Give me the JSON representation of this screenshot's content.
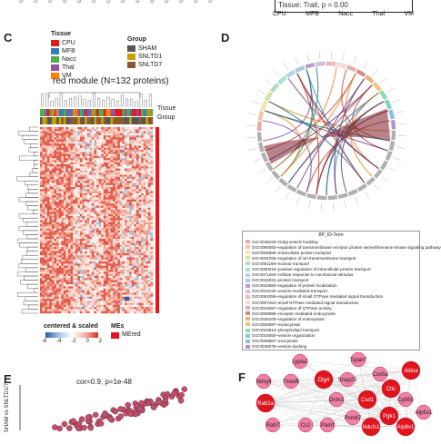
{
  "top_strip": {
    "tick_labels": [
      "SNLTD7",
      "SNLTD1",
      "SNLTD7",
      "SNLTD1",
      "Sham",
      "SNLTD7",
      "SNLTD1",
      "SNLTD7",
      "SNLTD1",
      "Sham",
      "SNLTD7",
      "SNLTD1",
      "SNLTD7",
      "SNLTD1"
    ],
    "stat_text": "Tissue: Trait, p = 0.00",
    "tissue_labels": [
      "CPU",
      "MFB",
      "Nacc",
      "Thal",
      "VM"
    ]
  },
  "panel_c": {
    "letter": "C",
    "tissue_legend_title": "Tissue",
    "tissue_items": [
      {
        "label": "CPU",
        "color": "#e41a1c"
      },
      {
        "label": "MFB",
        "color": "#377eb8"
      },
      {
        "label": "Nacc",
        "color": "#4daf4a"
      },
      {
        "label": "Thal",
        "color": "#984ea3"
      },
      {
        "label": "VM",
        "color": "#ff7f00"
      }
    ],
    "group_legend_title": "Group",
    "group_items": [
      {
        "label": "SHAM",
        "color": "#555555"
      },
      {
        "label": "SNLTD1",
        "color": "#c8a000"
      },
      {
        "label": "SNLTD7",
        "color": "#8b5a2b"
      }
    ],
    "heatmap_title": "red module (N=132 proteins)",
    "row_label_tissue": "Tissue",
    "row_label_group": "Group",
    "scale_title": "centered & scaled",
    "scale_ticks": [
      "-6",
      "-4",
      "-2",
      "0",
      "2"
    ],
    "mes_title": "MEs",
    "mes_label": "MEred",
    "mes_color": "#e8141c"
  },
  "panel_d": {
    "letter": "D",
    "legend_header": "BP_ID-Term",
    "terms": [
      {
        "label": "GO:0048193~Golgi vesicle budding",
        "color": "#f4a3a8"
      },
      {
        "label": "GO:0090092~regulation of transmembrane receptor protein serine/threonine kinase signaling pathway",
        "color": "#f7c8a0"
      },
      {
        "label": "GO:0006886~intracellular protein transport",
        "color": "#f9e79f"
      },
      {
        "label": "GO:0034765~regulation of ion transmembrane transport",
        "color": "#d5e8a0"
      },
      {
        "label": "GO:0051169~nuclear transport",
        "color": "#a9dfbf"
      },
      {
        "label": "GO:0090316~positive regulation of intracellular protein transport",
        "color": "#a3e4d7"
      },
      {
        "label": "GO:0071260~cellular response to mechanical stimulus",
        "color": "#aed6f1"
      },
      {
        "label": "GO:0015031~protein transport",
        "color": "#a9cce3"
      },
      {
        "label": "GO:0032880~regulation of protein localization",
        "color": "#c39bd3"
      },
      {
        "label": "GO:0016192~vesicle-mediated transport",
        "color": "#d7bde2"
      },
      {
        "label": "GO:0051056~regulation of small GTPase mediated signal transduction",
        "color": "#f5b7b1"
      },
      {
        "label": "GO:0007264~small GTPase mediated signal transduction",
        "color": "#fadbd8"
      },
      {
        "label": "GO:0043087~regulation of GTPase activity",
        "color": "#e6b0aa"
      },
      {
        "label": "GO:0006898~receptor-mediated endocytosis",
        "color": "#d98880"
      },
      {
        "label": "GO:0030100~regulation of endocytosis",
        "color": "#f0b27a"
      },
      {
        "label": "GO:0006897~endocytosis",
        "color": "#f8c471"
      },
      {
        "label": "GO:0015914~phospholipid transport",
        "color": "#82e0aa"
      },
      {
        "label": "GO:0016050~vesicle organization",
        "color": "#76d7c4"
      },
      {
        "label": "GO:0006887~exocytosis",
        "color": "#85c1e9"
      },
      {
        "label": "GO:0048278~vesicle docking",
        "color": "#bb8fce"
      }
    ]
  },
  "panel_e": {
    "letter": "E",
    "stat_text": "cor=0.9, p=1e-48",
    "ylabel": "SHAM vs SNLTD1/7"
  },
  "panel_f": {
    "letter": "F",
    "nodes": [
      {
        "label": "Lypla2",
        "hub": false
      },
      {
        "label": "Tspan7",
        "hub": false
      },
      {
        "label": "Ndrg4",
        "hub": false
      },
      {
        "label": "Tmed5",
        "hub": false
      },
      {
        "label": "Dlg4",
        "hub": true
      },
      {
        "label": "Snap25",
        "hub": false
      },
      {
        "label": "Cox5a",
        "hub": false
      },
      {
        "label": "Aldoa",
        "hub": true
      },
      {
        "label": "Cltc",
        "hub": true
      },
      {
        "label": "Rab3a",
        "hub": true
      },
      {
        "label": "Dnm1",
        "hub": false
      },
      {
        "label": "Csd1",
        "hub": true
      },
      {
        "label": "Cyb5b",
        "hub": false
      },
      {
        "label": "Atp5o1",
        "hub": false
      },
      {
        "label": "Psmb7",
        "hub": false
      },
      {
        "label": "Pgk1",
        "hub": true
      },
      {
        "label": "Rab7",
        "hub": false
      },
      {
        "label": "Cs2",
        "hub": false
      },
      {
        "label": "Pamf",
        "hub": false
      },
      {
        "label": "Ndufs1",
        "hub": true
      },
      {
        "label": "Atp6v1",
        "hub": true
      }
    ]
  }
}
